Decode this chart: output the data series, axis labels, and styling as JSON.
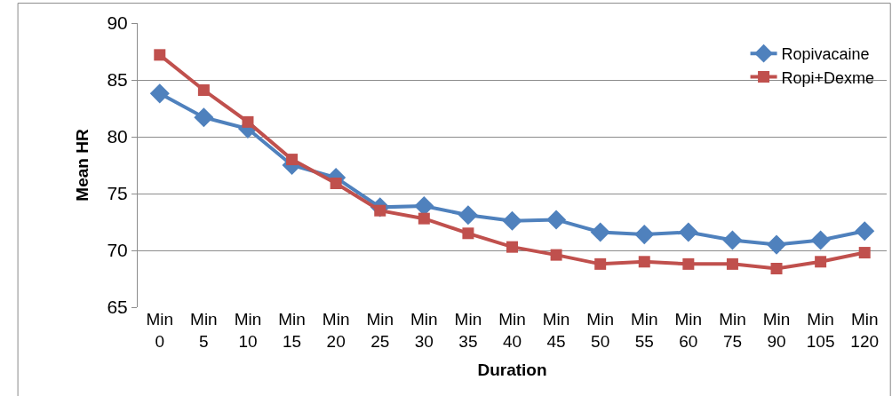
{
  "chart_data": {
    "type": "line",
    "xlabel": "Duration",
    "ylabel": "Mean HR",
    "categories": [
      "Min 0",
      "Min 5",
      "Min 10",
      "Min 15",
      "Min 20",
      "Min 25",
      "Min 30",
      "Min 35",
      "Min 40",
      "Min 45",
      "Min 50",
      "Min 55",
      "Min 60",
      "Min 75",
      "Min 90",
      "Min 105",
      "Min 120"
    ],
    "series": [
      {
        "name": "Ropivacaine",
        "color": "#4f81bd",
        "marker": "diamond",
        "values": [
          83.8,
          81.7,
          80.7,
          77.5,
          76.4,
          73.8,
          73.9,
          73.1,
          72.6,
          72.7,
          71.6,
          71.4,
          71.6,
          70.9,
          70.5,
          70.9,
          71.7
        ]
      },
      {
        "name": "Ropi+Dexme",
        "color": "#c0504d",
        "marker": "square",
        "values": [
          87.2,
          84.1,
          81.3,
          78.0,
          75.9,
          73.5,
          72.8,
          71.5,
          70.3,
          69.6,
          68.8,
          69.0,
          68.8,
          68.8,
          68.4,
          69.0,
          69.8
        ]
      }
    ],
    "ylim": [
      65,
      90
    ],
    "yticks": [
      65,
      70,
      75,
      80,
      85,
      90
    ],
    "grid": "y",
    "legend": "top right"
  }
}
